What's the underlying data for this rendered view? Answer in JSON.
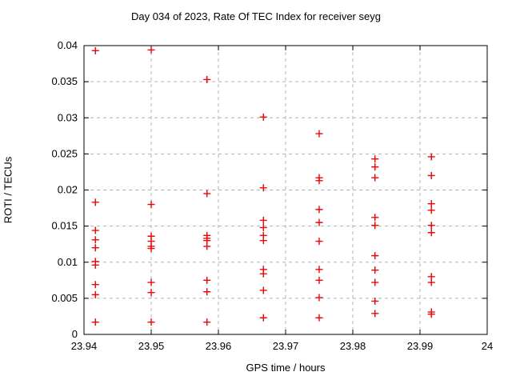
{
  "chart_data": {
    "type": "scatter",
    "title": "Day 034 of 2023, Rate Of TEC Index for receiver seyg",
    "xlabel": "GPS time / hours",
    "ylabel": "ROTI / TECUs",
    "xlim": [
      23.94,
      24
    ],
    "ylim": [
      0,
      0.04
    ],
    "x_ticks": [
      23.94,
      23.95,
      23.96,
      23.97,
      23.98,
      23.99,
      24
    ],
    "x_tick_labels": [
      "23.94",
      "23.95",
      "23.96",
      "23.97",
      "23.98",
      "23.99",
      "24"
    ],
    "y_ticks": [
      0,
      0.005,
      0.01,
      0.015,
      0.02,
      0.025,
      0.03,
      0.035,
      0.04
    ],
    "y_tick_labels": [
      "0",
      "0.005",
      "0.01",
      "0.015",
      "0.02",
      "0.025",
      "0.03",
      "0.035",
      "0.04"
    ],
    "grid": true,
    "legend": false,
    "marker": {
      "shape": "plus",
      "color": "#ff0000",
      "size": 9
    },
    "grid_color": "#b0b0b0",
    "border_color": "#000000",
    "series": [
      {
        "name": "ROTI",
        "points": [
          [
            23.9417,
            0.0393
          ],
          [
            23.9417,
            0.0183
          ],
          [
            23.9417,
            0.0144
          ],
          [
            23.9417,
            0.0131
          ],
          [
            23.9417,
            0.012
          ],
          [
            23.9417,
            0.0101
          ],
          [
            23.9417,
            0.0096
          ],
          [
            23.9417,
            0.0069
          ],
          [
            23.9417,
            0.0055
          ],
          [
            23.9417,
            0.0017
          ],
          [
            23.95,
            0.0394
          ],
          [
            23.95,
            0.018
          ],
          [
            23.95,
            0.0136
          ],
          [
            23.95,
            0.0129
          ],
          [
            23.95,
            0.0122
          ],
          [
            23.95,
            0.0119
          ],
          [
            23.95,
            0.0072
          ],
          [
            23.95,
            0.0058
          ],
          [
            23.95,
            0.0017
          ],
          [
            23.9583,
            0.0353
          ],
          [
            23.9583,
            0.0195
          ],
          [
            23.9583,
            0.0137
          ],
          [
            23.9583,
            0.0133
          ],
          [
            23.9583,
            0.013
          ],
          [
            23.9583,
            0.0122
          ],
          [
            23.9583,
            0.0075
          ],
          [
            23.9583,
            0.0059
          ],
          [
            23.9583,
            0.0017
          ],
          [
            23.9667,
            0.0301
          ],
          [
            23.9667,
            0.0203
          ],
          [
            23.9667,
            0.0158
          ],
          [
            23.9667,
            0.0148
          ],
          [
            23.9667,
            0.0137
          ],
          [
            23.9667,
            0.013
          ],
          [
            23.9667,
            0.009
          ],
          [
            23.9667,
            0.0084
          ],
          [
            23.9667,
            0.0061
          ],
          [
            23.9667,
            0.0023
          ],
          [
            23.975,
            0.0278
          ],
          [
            23.975,
            0.0217
          ],
          [
            23.975,
            0.0213
          ],
          [
            23.975,
            0.0173
          ],
          [
            23.975,
            0.0155
          ],
          [
            23.975,
            0.0129
          ],
          [
            23.975,
            0.009
          ],
          [
            23.975,
            0.0075
          ],
          [
            23.975,
            0.0051
          ],
          [
            23.975,
            0.0023
          ],
          [
            23.9833,
            0.0243
          ],
          [
            23.9833,
            0.0232
          ],
          [
            23.9833,
            0.0217
          ],
          [
            23.9833,
            0.0162
          ],
          [
            23.9833,
            0.0151
          ],
          [
            23.9833,
            0.0109
          ],
          [
            23.9833,
            0.0089
          ],
          [
            23.9833,
            0.0072
          ],
          [
            23.9833,
            0.0046
          ],
          [
            23.9833,
            0.0029
          ],
          [
            23.9917,
            0.0246
          ],
          [
            23.9917,
            0.022
          ],
          [
            23.9917,
            0.0181
          ],
          [
            23.9917,
            0.0172
          ],
          [
            23.9917,
            0.0151
          ],
          [
            23.9917,
            0.0141
          ],
          [
            23.9917,
            0.008
          ],
          [
            23.9917,
            0.0072
          ],
          [
            23.9917,
            0.0031
          ],
          [
            23.9917,
            0.0028
          ]
        ]
      }
    ]
  }
}
